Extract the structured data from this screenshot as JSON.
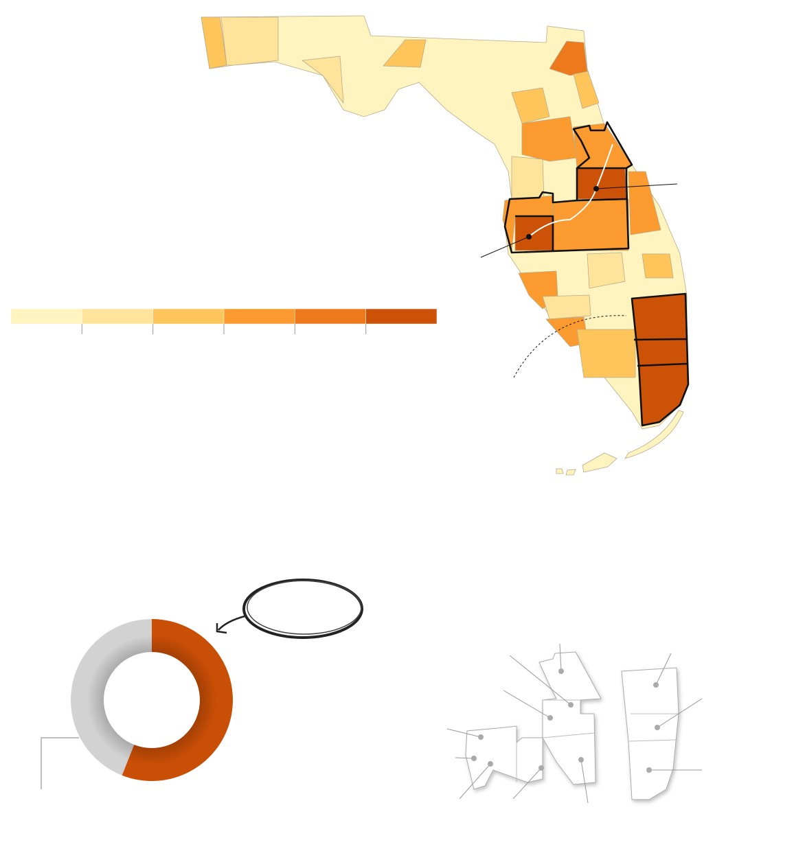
{
  "chart_data": {
    "type": "donut",
    "values": [
      56,
      44
    ],
    "colors": [
      "#c94e06",
      "#d2d2d2"
    ]
  },
  "legend": {
    "colors": [
      "#fff3c0",
      "#fee39a",
      "#fdc55a",
      "#fb9a2e",
      "#ec7a1c",
      "#cc5208"
    ]
  }
}
